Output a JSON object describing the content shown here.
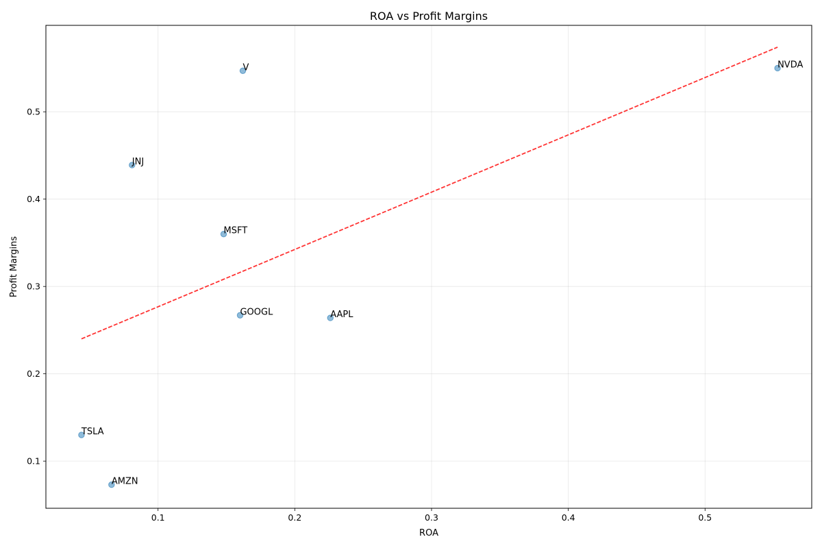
{
  "chart_data": {
    "type": "scatter",
    "title": "ROA vs Profit Margins",
    "xlabel": "ROA",
    "ylabel": "Profit Margins",
    "xlim": [
      0.018,
      0.578
    ],
    "ylim": [
      0.046,
      0.599
    ],
    "x_ticks": [
      0.1,
      0.2,
      0.3,
      0.4,
      0.5
    ],
    "y_ticks": [
      0.1,
      0.2,
      0.3,
      0.4,
      0.5
    ],
    "grid": true,
    "points": [
      {
        "label": "NVDA",
        "x": 0.553,
        "y": 0.55
      },
      {
        "label": "V",
        "x": 0.162,
        "y": 0.547
      },
      {
        "label": "JNJ",
        "x": 0.081,
        "y": 0.439
      },
      {
        "label": "MSFT",
        "x": 0.148,
        "y": 0.36
      },
      {
        "label": "GOOGL",
        "x": 0.16,
        "y": 0.267
      },
      {
        "label": "AAPL",
        "x": 0.226,
        "y": 0.264
      },
      {
        "label": "TSLA",
        "x": 0.044,
        "y": 0.13
      },
      {
        "label": "AMZN",
        "x": 0.066,
        "y": 0.073
      }
    ],
    "trendline": {
      "x": [
        0.044,
        0.553
      ],
      "y": [
        0.24,
        0.574
      ],
      "style": "dashed"
    },
    "colors": {
      "points": "#1f77b4",
      "trendline": "#ff0000"
    }
  }
}
